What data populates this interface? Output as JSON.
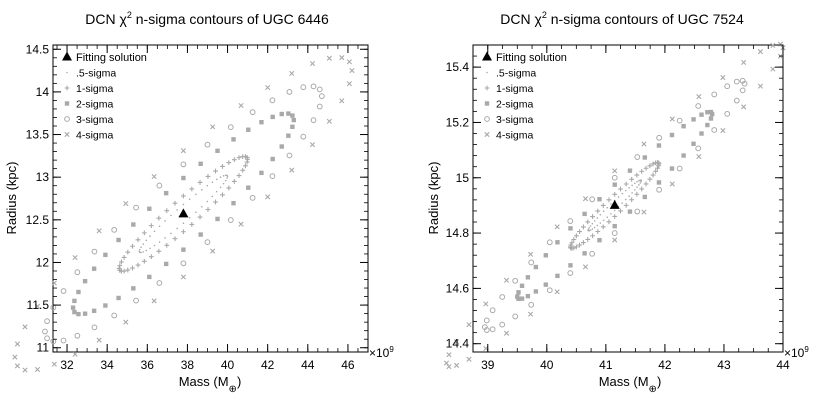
{
  "charts": [
    {
      "type": "scatter",
      "title_prefix": "DCN ",
      "title_chi": "χ",
      "title_sup": "2",
      "title_rest": " n-sigma contours of UGC 6446",
      "xlabel": "Mass (M",
      "xlabel_sub": "⊕",
      "xlabel_close": ")",
      "ylabel": "Radius (kpc)",
      "x_exponent_base": "×10",
      "x_exponent_power": "9",
      "xlim": [
        31.3,
        47.0
      ],
      "ylim": [
        10.95,
        14.55
      ],
      "xticks": [
        32,
        34,
        36,
        38,
        40,
        42,
        44,
        46
      ],
      "yticks": [
        11,
        11.5,
        12,
        12.5,
        13,
        13.5,
        14,
        14.5
      ],
      "xtick_labels": [
        "32",
        "34",
        "36",
        "38",
        "40",
        "42",
        "44",
        "46"
      ],
      "ytick_labels": [
        "11",
        "11.5",
        "12",
        "12.5",
        "13",
        "13.5",
        "14",
        "14.5"
      ],
      "solution": {
        "x": 37.8,
        "y": 12.57
      },
      "contours": [
        {
          "level": ".5-sigma",
          "a": 2.2,
          "b": 0.11,
          "slope": 0.2
        },
        {
          "level": "1-sigma",
          "a": 3.2,
          "b": 0.21,
          "slope": 0.2
        },
        {
          "level": "2-sigma",
          "a": 5.5,
          "b": 0.42,
          "slope": 0.2
        },
        {
          "level": "3-sigma",
          "a": 6.9,
          "b": 0.58,
          "slope": 0.2
        },
        {
          "level": "4-sigma",
          "a": 8.4,
          "b": 0.74,
          "slope": 0.2
        }
      ],
      "legend": [
        "Fitting solution",
        ".5-sigma",
        "1-sigma",
        "2-sigma",
        "3-sigma",
        "4-sigma"
      ]
    },
    {
      "type": "scatter",
      "title_prefix": "DCN ",
      "title_chi": "χ",
      "title_sup": "2",
      "title_rest": " n-sigma contours of UGC 7524",
      "xlabel": "Mass (M",
      "xlabel_sub": "⊕",
      "xlabel_close": ")",
      "ylabel": "Radius (kpc)",
      "x_exponent_base": "×10",
      "x_exponent_power": "9",
      "xlim": [
        38.75,
        44.0
      ],
      "ylim": [
        14.37,
        15.48
      ],
      "xticks": [
        39,
        40,
        41,
        42,
        43,
        44
      ],
      "yticks": [
        14.4,
        14.6,
        14.8,
        15,
        15.2,
        15.4
      ],
      "xtick_labels": [
        "39",
        "40",
        "41",
        "42",
        "43",
        "44"
      ],
      "ytick_labels": [
        "14.4",
        "14.6",
        "14.8",
        "15",
        "15.2",
        "15.4"
      ],
      "solution": {
        "x": 41.15,
        "y": 14.9
      },
      "contours": [
        {
          "level": ".5-sigma",
          "a": 0.45,
          "b": 0.018,
          "slope": 0.2
        },
        {
          "level": "1-sigma",
          "a": 0.75,
          "b": 0.04,
          "slope": 0.2
        },
        {
          "level": "2-sigma",
          "a": 1.65,
          "b": 0.075,
          "slope": 0.2
        },
        {
          "level": "3-sigma",
          "a": 2.2,
          "b": 0.1,
          "slope": 0.2
        },
        {
          "level": "4-sigma",
          "a": 2.85,
          "b": 0.125,
          "slope": 0.2
        }
      ],
      "legend": [
        "Fitting solution",
        ".5-sigma",
        "1-sigma",
        "2-sigma",
        "3-sigma",
        "4-sigma"
      ]
    }
  ]
}
